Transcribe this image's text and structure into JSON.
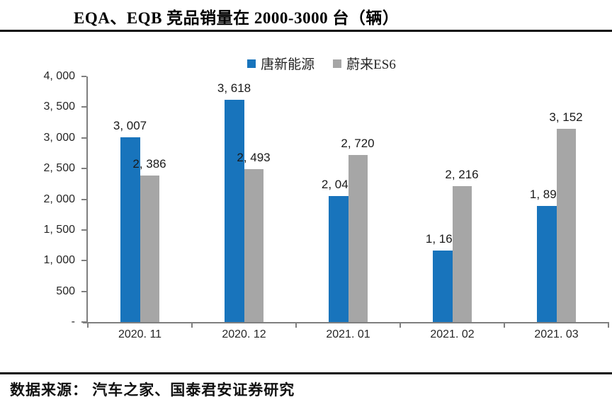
{
  "header": {
    "title": "EQA、EQB 竞品销量在 2000-3000 台（辆）"
  },
  "legend": {
    "items": [
      {
        "label": "唐新能源"
      },
      {
        "label": "蔚来ES6"
      }
    ]
  },
  "footer": {
    "source": "数据来源： 汽车之家、国泰君安证券研究"
  },
  "colors": {
    "bar_blue": "#1874BC",
    "bar_gray": "#A6A6A6",
    "axis": "#7F7F7F",
    "rule": "#0D0D0D",
    "label_text": "#1A1A1A"
  },
  "chart_data": {
    "type": "bar",
    "title": "EQA、EQB 竞品销量在 2000-3000 台（辆）",
    "categories": [
      "2020. 11",
      "2020. 12",
      "2021. 01",
      "2021. 02",
      "2021. 03"
    ],
    "series": [
      {
        "name": "唐新能源",
        "color": "#1874BC",
        "values": [
          3007,
          3618,
          2049,
          1169,
          1891
        ],
        "labels": [
          "3, 007",
          "3, 618",
          "2, 049",
          "1, 169",
          "1, 891"
        ]
      },
      {
        "name": "蔚来ES6",
        "color": "#A6A6A6",
        "values": [
          2386,
          2493,
          2720,
          2216,
          3152
        ],
        "labels": [
          "2, 386",
          "2, 493",
          "2, 720",
          "2, 216",
          "3, 152"
        ]
      }
    ],
    "xlabel": "",
    "ylabel": "",
    "y_axis": {
      "min": 0,
      "max": 4000,
      "step": 500,
      "tick_labels": [
        "-",
        "500",
        "1, 000",
        "1, 500",
        "2, 000",
        "2, 500",
        "3, 000",
        "3, 500",
        "4, 000"
      ]
    },
    "grid": false,
    "legend_position": "top-center",
    "data_labels": true
  }
}
